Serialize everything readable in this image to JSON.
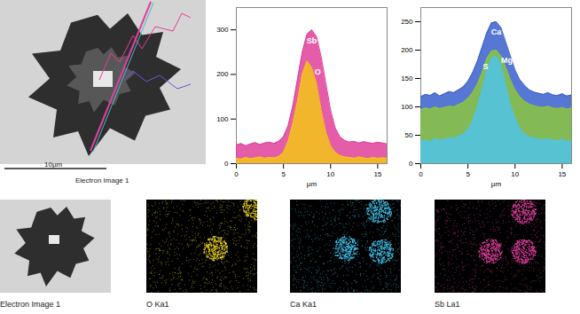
{
  "chart_data": [
    {
      "type": "area",
      "x_label": "µm",
      "xlim": [
        0,
        16
      ],
      "xticks": [
        0,
        5,
        10,
        15
      ],
      "ylim": [
        0,
        350
      ],
      "yticks": [
        0,
        100,
        200,
        300
      ],
      "x": [
        0,
        0.5,
        1,
        1.5,
        2,
        2.5,
        3,
        3.5,
        4,
        4.5,
        5,
        5.5,
        6,
        6.5,
        7,
        7.5,
        8,
        8.5,
        9,
        9.5,
        10,
        10.5,
        11,
        11.5,
        12,
        12.5,
        13,
        13.5,
        14,
        14.5,
        15,
        15.5,
        16
      ],
      "series": [
        {
          "name": "Sb",
          "color": "#e0409a",
          "values": [
            42,
            45,
            40,
            44,
            47,
            43,
            46,
            48,
            45,
            50,
            60,
            85,
            130,
            190,
            250,
            290,
            300,
            285,
            240,
            180,
            120,
            80,
            60,
            52,
            48,
            50,
            46,
            49,
            47,
            45,
            48,
            46,
            44
          ]
        },
        {
          "name": "O",
          "color": "#f5c518",
          "values": [
            12,
            10,
            14,
            11,
            13,
            15,
            12,
            14,
            13,
            16,
            25,
            50,
            90,
            140,
            200,
            230,
            215,
            180,
            120,
            70,
            40,
            25,
            18,
            15,
            14,
            12,
            15,
            13,
            11,
            14,
            12,
            13,
            12
          ]
        }
      ]
    },
    {
      "type": "area",
      "x_label": "µm",
      "xlim": [
        0,
        16
      ],
      "xticks": [
        0,
        5,
        10,
        15
      ],
      "ylim": [
        0,
        275
      ],
      "yticks": [
        0,
        50,
        100,
        150,
        200,
        250
      ],
      "x": [
        0,
        0.5,
        1,
        1.5,
        2,
        2.5,
        3,
        3.5,
        4,
        4.5,
        5,
        5.5,
        6,
        6.5,
        7,
        7.5,
        8,
        8.5,
        9,
        9.5,
        10,
        10.5,
        11,
        11.5,
        12,
        12.5,
        13,
        13.5,
        14,
        14.5,
        15,
        15.5,
        16
      ],
      "series": [
        {
          "name": "Ca",
          "color": "#3a5fcd",
          "values": [
            118,
            122,
            120,
            125,
            119,
            123,
            127,
            125,
            130,
            135,
            145,
            160,
            180,
            205,
            230,
            248,
            250,
            240,
            215,
            190,
            165,
            148,
            138,
            130,
            126,
            124,
            122,
            125,
            121,
            120,
            123,
            119,
            121
          ]
        },
        {
          "name": "Mg",
          "color": "#8cc63f",
          "values": [
            95,
            98,
            96,
            100,
            97,
            99,
            101,
            100,
            104,
            108,
            115,
            125,
            140,
            160,
            185,
            198,
            200,
            190,
            170,
            148,
            130,
            118,
            110,
            105,
            102,
            100,
            99,
            101,
            98,
            97,
            99,
            96,
            98
          ]
        },
        {
          "name": "S",
          "color": "#4fc3e8",
          "values": [
            40,
            42,
            38,
            45,
            41,
            43,
            46,
            44,
            48,
            52,
            60,
            75,
            100,
            130,
            165,
            185,
            190,
            175,
            140,
            105,
            80,
            62,
            52,
            47,
            45,
            43,
            42,
            44,
            41,
            40,
            43,
            39,
            41
          ]
        }
      ]
    }
  ],
  "electron_image": {
    "caption": "Electron Image 1",
    "scale_bar": "10µm"
  },
  "maps": [
    {
      "caption": "Electron Image 1"
    },
    {
      "caption": "O Ka1",
      "color": "#e8d020"
    },
    {
      "caption": "Ca Ka1",
      "color": "#40c0e8"
    },
    {
      "caption": "Sb La1",
      "color": "#e040a0"
    }
  ]
}
